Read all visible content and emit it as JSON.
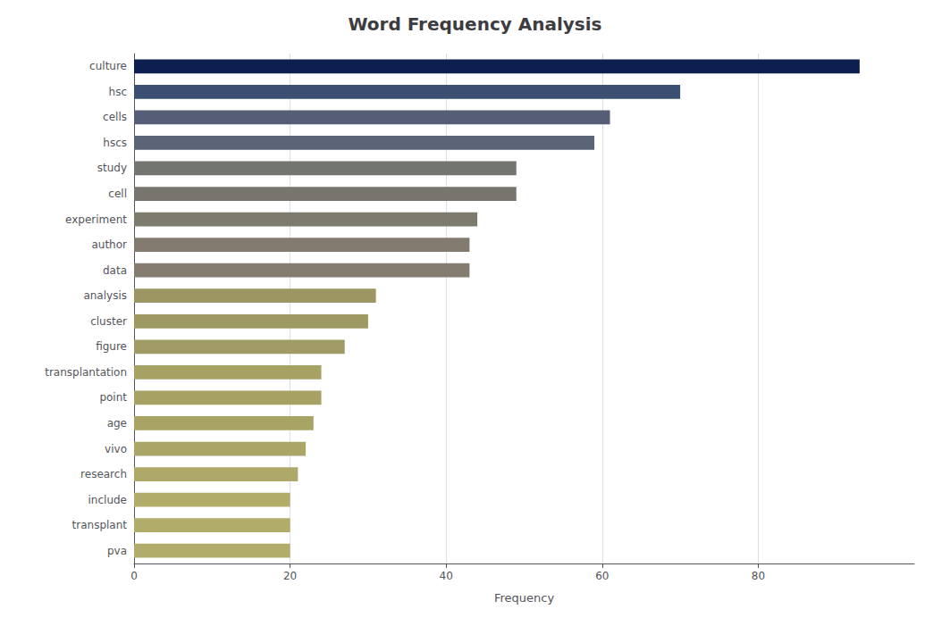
{
  "chart_data": {
    "type": "bar",
    "orientation": "horizontal",
    "title": "Word Frequency Analysis",
    "categories": [
      "culture",
      "hsc",
      "cells",
      "hscs",
      "study",
      "cell",
      "experiment",
      "author",
      "data",
      "analysis",
      "cluster",
      "figure",
      "transplantation",
      "point",
      "age",
      "vivo",
      "research",
      "include",
      "transplant",
      "pva"
    ],
    "values": [
      93,
      70,
      61,
      59,
      49,
      49,
      44,
      43,
      43,
      31,
      30,
      27,
      24,
      24,
      23,
      22,
      21,
      20,
      20,
      20
    ],
    "colors": [
      "#0d1f4e",
      "#3a4f72",
      "#555e76",
      "#5c6578",
      "#737570",
      "#77756e",
      "#7d7a6e",
      "#827a6e",
      "#847c6e",
      "#9c9762",
      "#9e9962",
      "#a09b64",
      "#a6a264",
      "#a6a264",
      "#a8a464",
      "#aaa666",
      "#aea968",
      "#b2ac6a",
      "#b2ac6a",
      "#b2ac6a"
    ],
    "xlabel": "Frequency",
    "xlim": [
      0,
      100
    ],
    "xticks": [
      0,
      20,
      40,
      60,
      80
    ],
    "grid": true
  }
}
